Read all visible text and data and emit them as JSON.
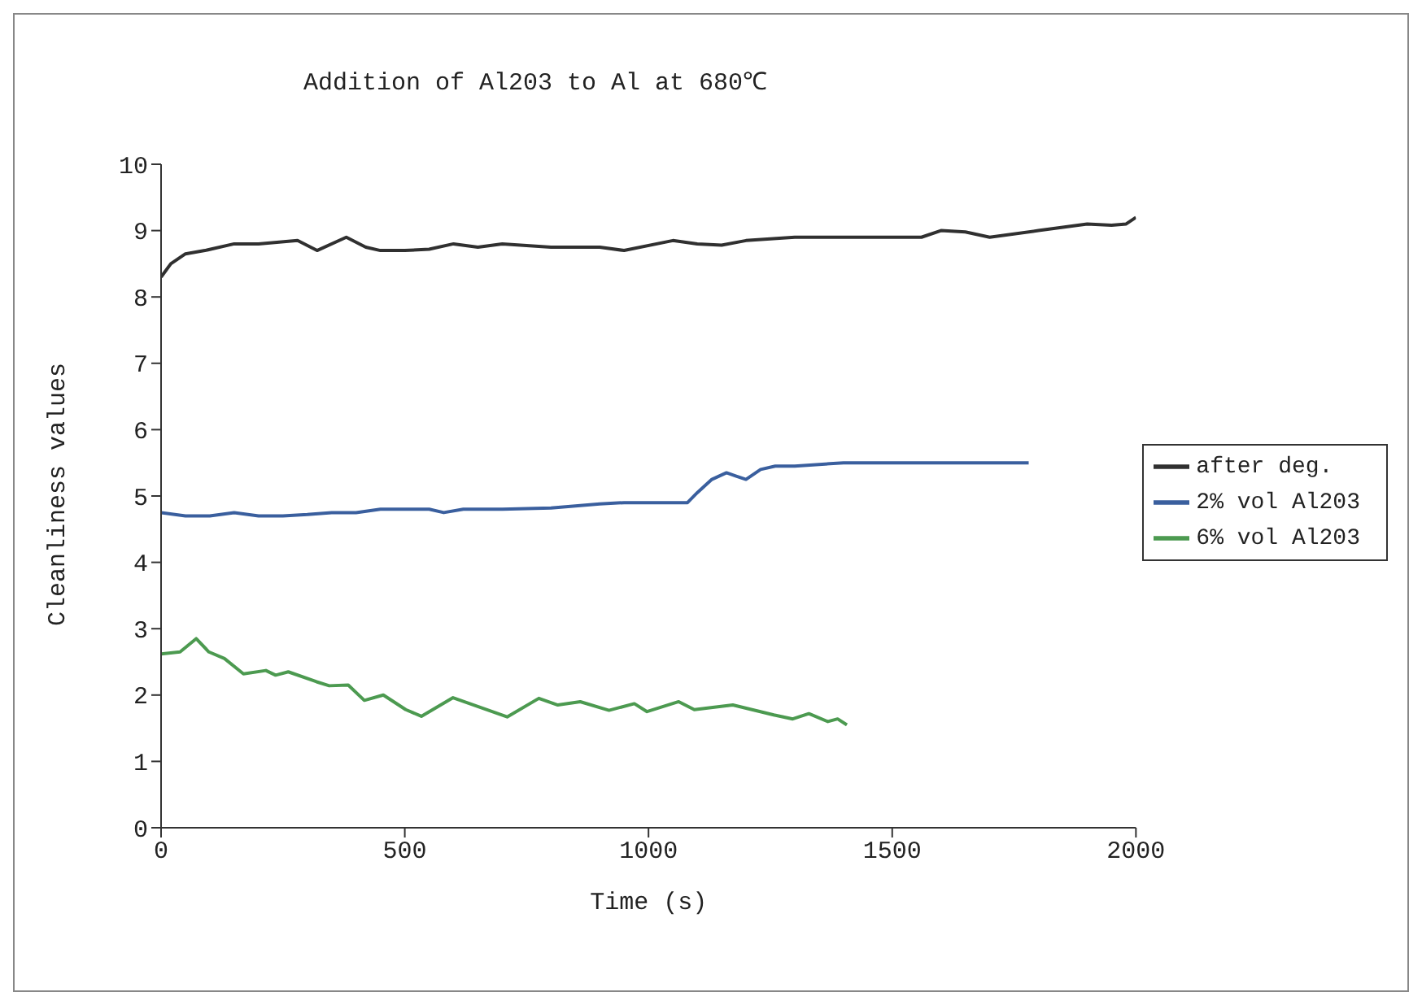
{
  "chart_data": {
    "type": "line",
    "title": "Addition of Al203 to Al at 680℃",
    "xlabel": "Time (s)",
    "ylabel": "Cleanliness values",
    "xlim": [
      0,
      2000
    ],
    "xticks": [
      0,
      500,
      1000,
      1500,
      2000
    ],
    "ylim": [
      0,
      10
    ],
    "yticks": [
      0,
      1,
      2,
      3,
      4,
      5,
      6,
      7,
      8,
      9,
      10
    ],
    "grid": false,
    "legend": "right",
    "marker": "none",
    "line_style": "solid",
    "series": [
      {
        "name": "after deg.",
        "color": "#303030",
        "x": [
          0,
          20,
          50,
          90,
          150,
          200,
          280,
          320,
          380,
          420,
          450,
          500,
          550,
          600,
          650,
          700,
          800,
          900,
          950,
          1050,
          1100,
          1150,
          1200,
          1300,
          1400,
          1500,
          1560,
          1600,
          1650,
          1700,
          1800,
          1850,
          1900,
          1950,
          1980,
          2000
        ],
        "values": [
          8.3,
          8.5,
          8.65,
          8.7,
          8.8,
          8.8,
          8.85,
          8.7,
          8.9,
          8.75,
          8.7,
          8.7,
          8.72,
          8.8,
          8.75,
          8.8,
          8.75,
          8.75,
          8.7,
          8.85,
          8.8,
          8.78,
          8.85,
          8.9,
          8.9,
          8.9,
          8.9,
          9.0,
          8.98,
          8.9,
          9.0,
          9.05,
          9.1,
          9.08,
          9.1,
          9.2
        ]
      },
      {
        "name": "2% vol Al203",
        "color": "#3a5f9e",
        "x": [
          0,
          50,
          100,
          150,
          200,
          250,
          300,
          350,
          400,
          450,
          500,
          550,
          580,
          620,
          700,
          800,
          850,
          900,
          950,
          1000,
          1080,
          1100,
          1130,
          1160,
          1180,
          1200,
          1230,
          1260,
          1300,
          1400,
          1500,
          1600,
          1700,
          1780
        ],
        "values": [
          4.75,
          4.7,
          4.7,
          4.75,
          4.7,
          4.7,
          4.72,
          4.75,
          4.75,
          4.8,
          4.8,
          4.8,
          4.75,
          4.8,
          4.8,
          4.82,
          4.85,
          4.88,
          4.9,
          4.9,
          4.9,
          5.05,
          5.25,
          5.35,
          5.3,
          5.25,
          5.4,
          5.45,
          5.45,
          5.5,
          5.5,
          5.5,
          5.5,
          5.5
        ]
      },
      {
        "name": "6% vol Al203",
        "color": "#4c9a50",
        "x": [
          0,
          39,
          72,
          98,
          130,
          169,
          215,
          235,
          261,
          319,
          345,
          384,
          417,
          456,
          502,
          534,
          599,
          710,
          775,
          814,
          860,
          919,
          971,
          997,
          1062,
          1094,
          1173,
          1257,
          1296,
          1329,
          1368,
          1388,
          1407
        ],
        "values": [
          2.62,
          2.65,
          2.85,
          2.65,
          2.55,
          2.32,
          2.37,
          2.3,
          2.35,
          2.2,
          2.14,
          2.15,
          1.92,
          2.0,
          1.78,
          1.68,
          1.96,
          1.67,
          1.95,
          1.85,
          1.9,
          1.77,
          1.87,
          1.75,
          1.9,
          1.78,
          1.85,
          1.7,
          1.64,
          1.72,
          1.6,
          1.64,
          1.55
        ]
      }
    ]
  }
}
